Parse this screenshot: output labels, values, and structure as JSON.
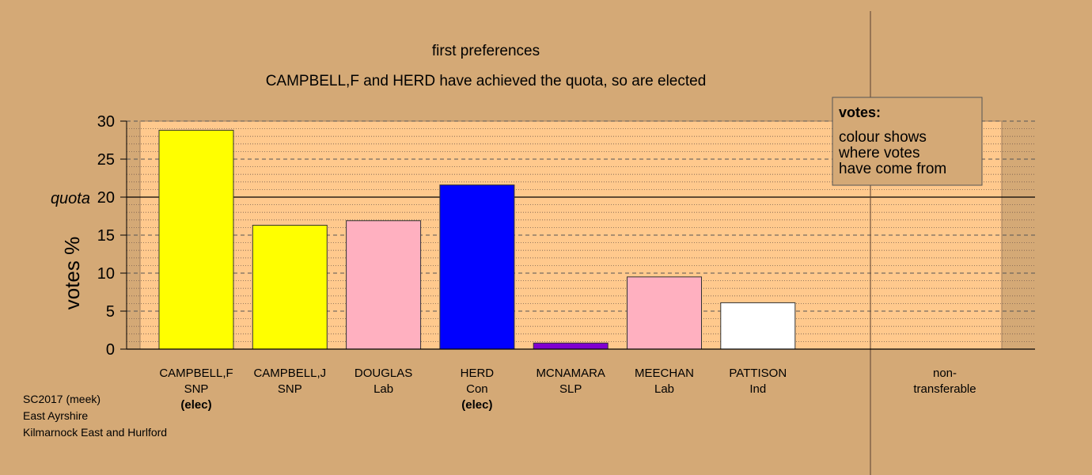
{
  "titles": {
    "line1": "first preferences",
    "line2": "CAMPBELL,F and HERD have achieved the quota, so are elected"
  },
  "legend": {
    "title": "votes:",
    "lines": [
      "colour shows",
      "where votes",
      "have come from"
    ]
  },
  "info": {
    "line1": "SC2017 (meek)",
    "line2": "East Ayrshire",
    "line3": "Kilmarnock East and Hurlford"
  },
  "colors": {
    "background": "#d4a976",
    "plot_area": "#ffc98d",
    "SNP": "#ffff00",
    "Lab": "#ffb0c0",
    "Con": "#0000ff",
    "SLP": "#8000d0",
    "Ind": "#ffffff"
  },
  "chart_data": {
    "type": "bar",
    "ylabel": "votes %",
    "xlabel": "",
    "ylim": [
      0,
      30
    ],
    "yticks": [
      0,
      5,
      10,
      15,
      20,
      25,
      30
    ],
    "quota": 20,
    "quota_label": "quota",
    "categories": [
      "CAMPBELL,F",
      "CAMPBELL,J",
      "DOUGLAS",
      "HERD",
      "MCNAMARA",
      "MEECHAN",
      "PATTISON"
    ],
    "parties": [
      "SNP",
      "SNP",
      "Lab",
      "Con",
      "SLP",
      "Lab",
      "Ind"
    ],
    "status": [
      "(elec)",
      "",
      "",
      "(elec)",
      "",
      "",
      ""
    ],
    "values": [
      28.8,
      16.3,
      16.9,
      21.6,
      0.8,
      9.5,
      6.1
    ],
    "nontransferable": {
      "label_line1": "non-",
      "label_line2": "transferable",
      "value": 0
    }
  }
}
